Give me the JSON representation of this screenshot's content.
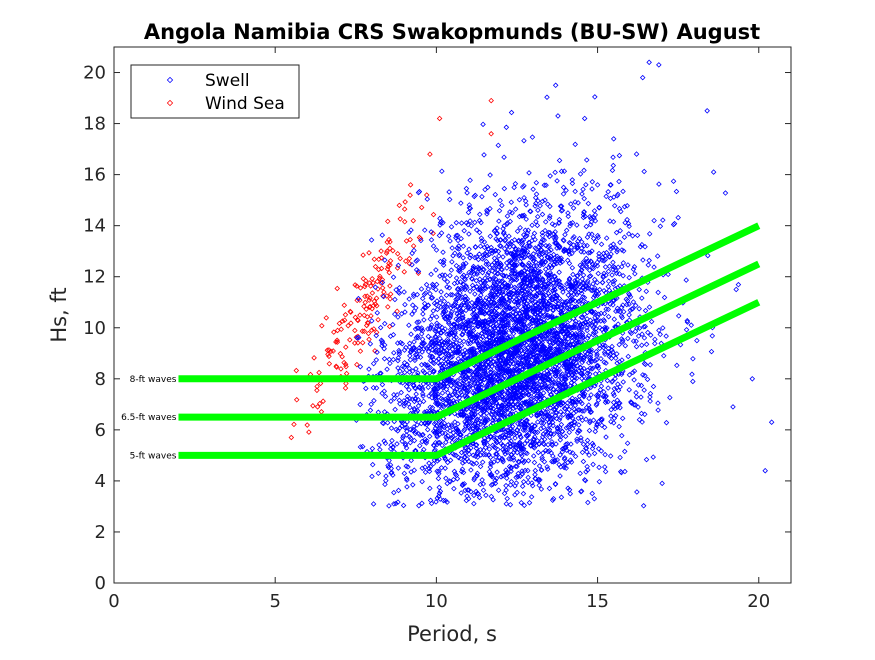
{
  "chart_data": {
    "type": "scatter",
    "title": "Angola Namibia CRS Swakopmunds (BU-SW) August",
    "xlabel": "Period, s",
    "ylabel": "Hs, ft",
    "xlim": [
      0,
      21
    ],
    "ylim": [
      0,
      21
    ],
    "xticks": [
      0,
      5,
      10,
      15,
      20
    ],
    "yticks": [
      0,
      2,
      4,
      6,
      8,
      10,
      12,
      14,
      16,
      18,
      20
    ],
    "grid": false,
    "legend_position": "top-left",
    "series": [
      {
        "name": "Swell",
        "color": "#0000ff",
        "marker": "diamond",
        "distribution": {
          "count": 5000,
          "center": [
            12.4,
            9.0
          ],
          "spread": [
            1.9,
            2.7
          ],
          "period_range": [
            7.5,
            20.5
          ],
          "hs_range": [
            3.0,
            20.5
          ]
        },
        "points": [
          [
            16.6,
            20.4
          ],
          [
            16.9,
            20.3
          ],
          [
            16.4,
            19.8
          ],
          [
            18.4,
            18.5
          ],
          [
            20.2,
            4.4
          ],
          [
            20.4,
            6.3
          ],
          [
            19.8,
            8.0
          ],
          [
            19.2,
            6.9
          ],
          [
            14.9,
            3.3
          ],
          [
            11.0,
            3.3
          ],
          [
            12.7,
            3.5
          ],
          [
            8.2,
            4.3
          ],
          [
            8.5,
            4.6
          ],
          [
            18.6,
            16.1
          ],
          [
            15.5,
            17.4
          ],
          [
            14.6,
            18.2
          ],
          [
            13.7,
            19.5
          ],
          [
            19.3,
            11.5
          ],
          [
            8.8,
            9.4
          ],
          [
            9.0,
            11.4
          ]
        ]
      },
      {
        "name": "Wind Sea",
        "color": "#ff0000",
        "marker": "diamond",
        "distribution": {
          "count": 170,
          "center": [
            7.6,
            10.3
          ],
          "spread": [
            0.9,
            1.8
          ],
          "period_range": [
            5.3,
            10.8
          ],
          "hs_range": [
            5.6,
            19.0
          ]
        },
        "points": [
          [
            11.7,
            18.9
          ],
          [
            10.1,
            18.2
          ],
          [
            11.7,
            17.6
          ],
          [
            9.8,
            16.8
          ],
          [
            9.2,
            15.6
          ],
          [
            9.7,
            15.2
          ],
          [
            5.5,
            5.7
          ],
          [
            6.0,
            6.5
          ],
          [
            6.3,
            7.7
          ],
          [
            7.8,
            11.7
          ],
          [
            8.8,
            12.9
          ],
          [
            9.9,
            13.7
          ]
        ]
      }
    ],
    "thresholds": [
      {
        "label": "8-ft waves",
        "color": "#00ff00",
        "x": [
          2,
          10,
          20
        ],
        "y": [
          8,
          8,
          14
        ]
      },
      {
        "label": "6.5-ft waves",
        "color": "#00ff00",
        "x": [
          2,
          10,
          20
        ],
        "y": [
          6.5,
          6.5,
          12.5
        ]
      },
      {
        "label": "5-ft waves",
        "color": "#00ff00",
        "x": [
          2,
          10,
          20
        ],
        "y": [
          5,
          5,
          11
        ]
      }
    ]
  }
}
